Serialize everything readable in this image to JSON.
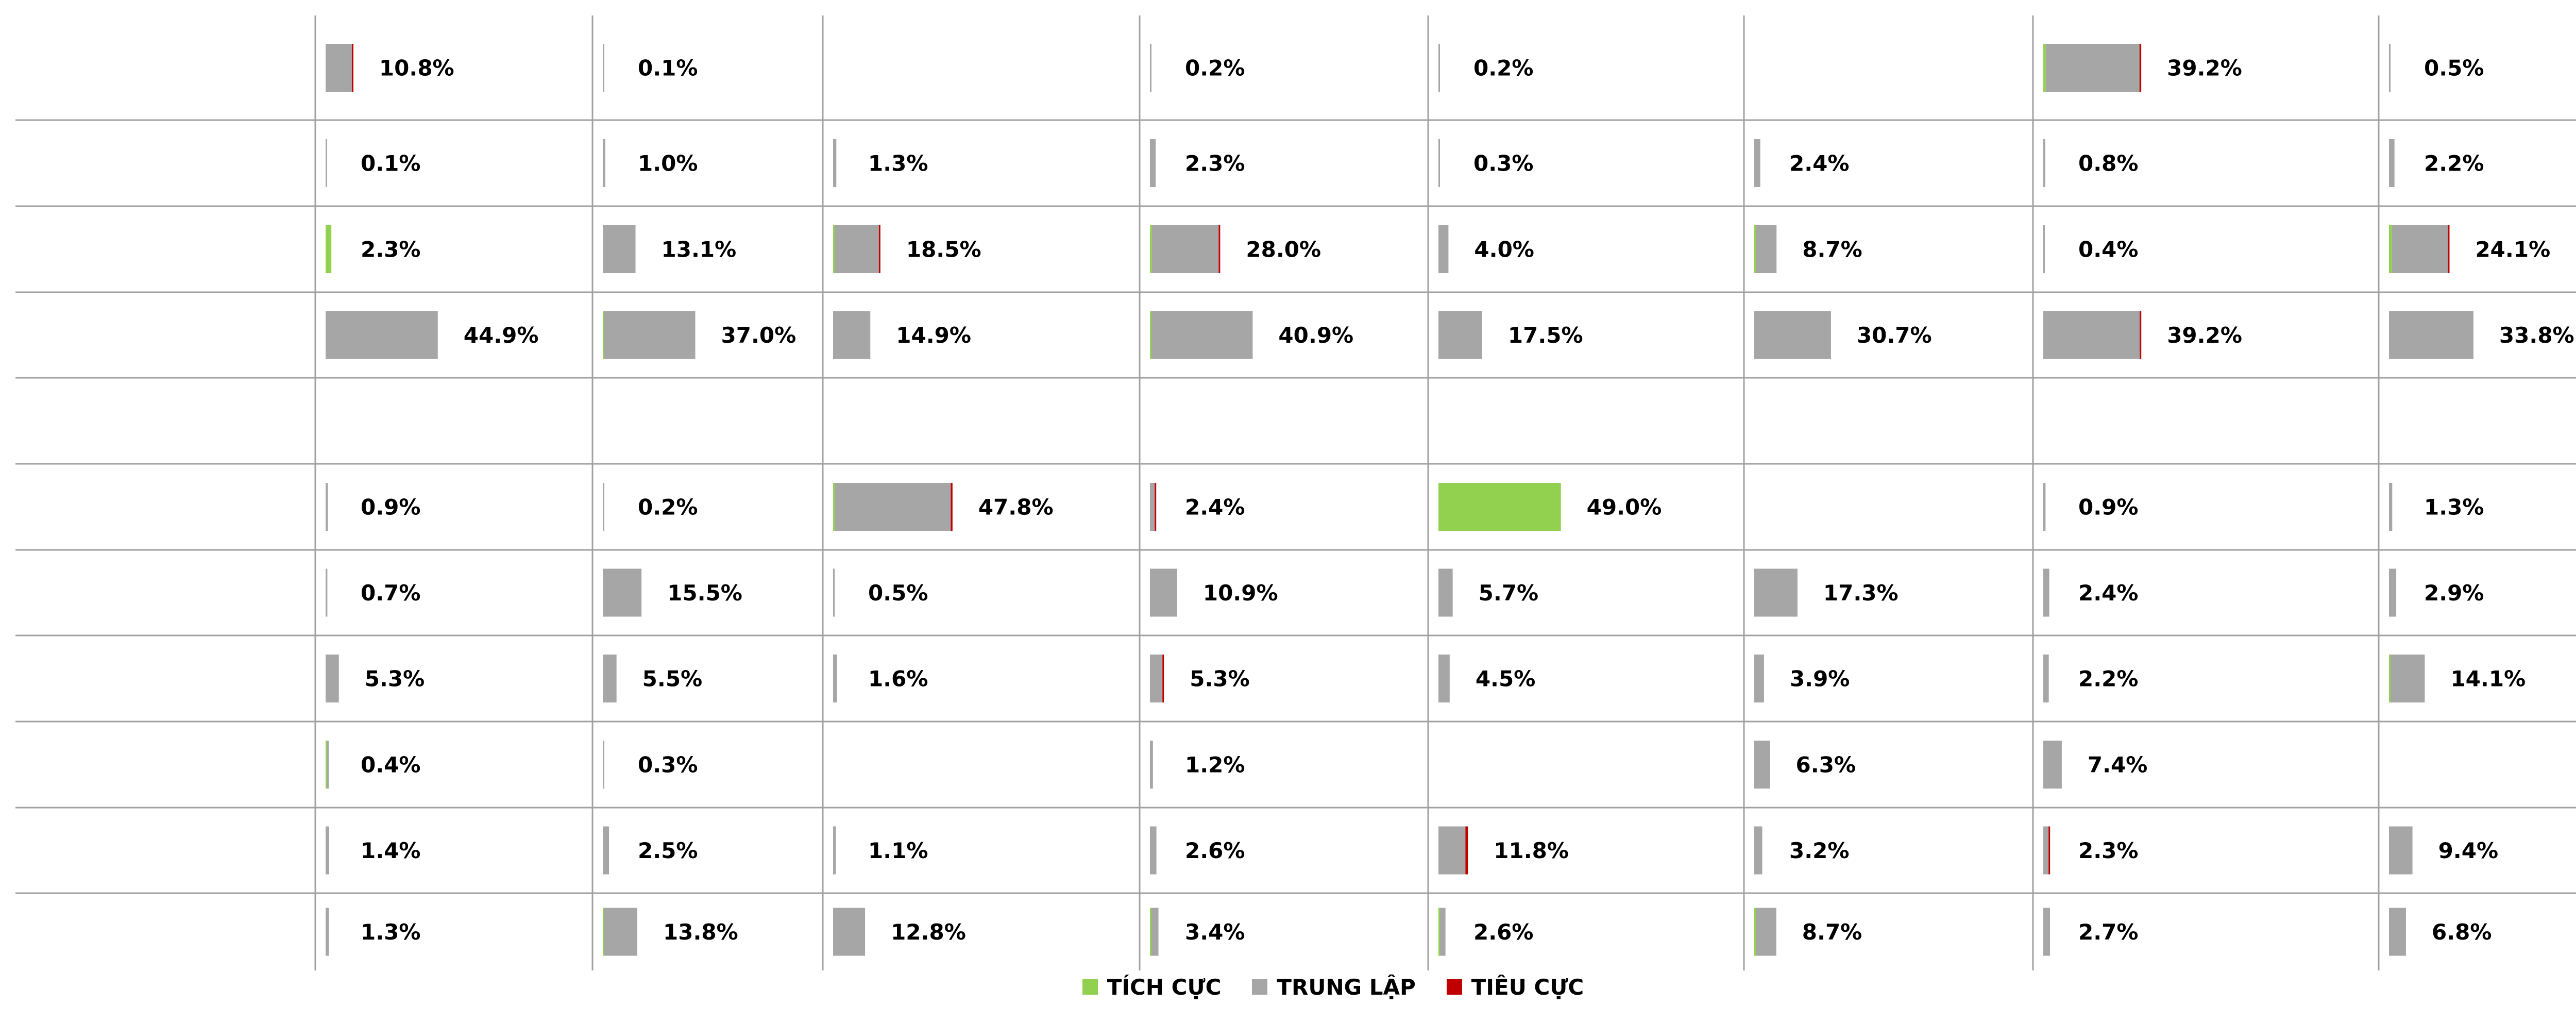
{
  "chart_data": {
    "type": "bar",
    "stacked": true,
    "orientation": "horizontal",
    "layout": "grid of small-multiple bar panels: 11 rows x 8 columns",
    "grid": true,
    "legend_placement": "bottom",
    "series": [
      {
        "name": "TÍCH CỰC",
        "color": "#92d050"
      },
      {
        "name": "TRUNG LẬP",
        "color": "#a6a6a6"
      },
      {
        "name": "TIÊU CỰC",
        "color": "#c00000"
      }
    ],
    "cells": [
      [
        {
          "total": "10.8%",
          "pos": 0.0,
          "neu": 10.5,
          "neg": 0.3
        },
        {
          "total": "0.1%",
          "pos": 0.0,
          "neu": 0.1,
          "neg": 0.0
        },
        null,
        {
          "total": "0.2%",
          "pos": 0.0,
          "neu": 0.2,
          "neg": 0.0
        },
        {
          "total": "0.2%",
          "pos": 0.0,
          "neu": 0.2,
          "neg": 0.0
        },
        null,
        {
          "total": "39.2%",
          "pos": 1.0,
          "neu": 37.5,
          "neg": 0.7
        },
        {
          "total": "0.5%",
          "pos": 0.0,
          "neu": 0.5,
          "neg": 0.0
        }
      ],
      [
        {
          "total": "0.1%",
          "pos": 0.0,
          "neu": 0.1,
          "neg": 0.0
        },
        {
          "total": "1.0%",
          "pos": 0.0,
          "neu": 1.0,
          "neg": 0.0
        },
        {
          "total": "1.3%",
          "pos": 0.0,
          "neu": 1.3,
          "neg": 0.0
        },
        {
          "total": "2.3%",
          "pos": 0.0,
          "neu": 2.3,
          "neg": 0.0
        },
        {
          "total": "0.3%",
          "pos": 0.0,
          "neu": 0.3,
          "neg": 0.0
        },
        {
          "total": "2.4%",
          "pos": 0.0,
          "neu": 2.4,
          "neg": 0.0
        },
        {
          "total": "0.8%",
          "pos": 0.0,
          "neu": 0.8,
          "neg": 0.0
        },
        {
          "total": "2.2%",
          "pos": 0.0,
          "neu": 2.2,
          "neg": 0.0
        }
      ],
      [
        {
          "total": "2.3%",
          "pos": 2.3,
          "neu": 0.0,
          "neg": 0.0
        },
        {
          "total": "13.1%",
          "pos": 0.0,
          "neu": 13.1,
          "neg": 0.0
        },
        {
          "total": "18.5%",
          "pos": 0.3,
          "neu": 17.7,
          "neg": 0.5
        },
        {
          "total": "28.0%",
          "pos": 0.8,
          "neu": 26.7,
          "neg": 0.5
        },
        {
          "total": "4.0%",
          "pos": 0.0,
          "neu": 4.0,
          "neg": 0.0
        },
        {
          "total": "8.7%",
          "pos": 0.4,
          "neu": 8.3,
          "neg": 0.0
        },
        {
          "total": "0.4%",
          "pos": 0.0,
          "neu": 0.4,
          "neg": 0.0
        },
        {
          "total": "24.1%",
          "pos": 1.2,
          "neu": 22.4,
          "neg": 0.5
        }
      ],
      [
        {
          "total": "44.9%",
          "pos": 0.0,
          "neu": 44.9,
          "neg": 0.0
        },
        {
          "total": "37.0%",
          "pos": 0.6,
          "neu": 36.4,
          "neg": 0.0
        },
        {
          "total": "14.9%",
          "pos": 0.0,
          "neu": 14.9,
          "neg": 0.0
        },
        {
          "total": "40.9%",
          "pos": 0.4,
          "neu": 40.5,
          "neg": 0.0
        },
        {
          "total": "17.5%",
          "pos": 0.0,
          "neu": 17.5,
          "neg": 0.0
        },
        {
          "total": "30.7%",
          "pos": 0.0,
          "neu": 30.7,
          "neg": 0.0
        },
        {
          "total": "39.2%",
          "pos": 0.0,
          "neu": 38.6,
          "neg": 0.6
        },
        {
          "total": "33.8%",
          "pos": 0.0,
          "neu": 33.8,
          "neg": 0.0
        }
      ],
      [
        null,
        null,
        null,
        null,
        null,
        null,
        null,
        null
      ],
      [
        {
          "total": "0.9%",
          "pos": 0.0,
          "neu": 0.9,
          "neg": 0.0
        },
        {
          "total": "0.2%",
          "pos": 0.0,
          "neu": 0.2,
          "neg": 0.0
        },
        {
          "total": "47.8%",
          "pos": 0.8,
          "neu": 46.3,
          "neg": 0.7
        },
        {
          "total": "2.4%",
          "pos": 0.0,
          "neu": 1.9,
          "neg": 0.5
        },
        {
          "total": "49.0%",
          "pos": 49.0,
          "neu": 0.0,
          "neg": 0.0
        },
        null,
        {
          "total": "0.9%",
          "pos": 0.0,
          "neu": 0.9,
          "neg": 0.0
        },
        {
          "total": "1.3%",
          "pos": 0.0,
          "neu": 1.3,
          "neg": 0.0
        }
      ],
      [
        {
          "total": "0.7%",
          "pos": 0.0,
          "neu": 0.7,
          "neg": 0.0
        },
        {
          "total": "15.5%",
          "pos": 0.0,
          "neu": 15.5,
          "neg": 0.0
        },
        {
          "total": "0.5%",
          "pos": 0.0,
          "neu": 0.5,
          "neg": 0.0
        },
        {
          "total": "10.9%",
          "pos": 0.0,
          "neu": 10.9,
          "neg": 0.0
        },
        {
          "total": "5.7%",
          "pos": 0.0,
          "neu": 5.7,
          "neg": 0.0
        },
        {
          "total": "17.3%",
          "pos": 0.0,
          "neu": 17.3,
          "neg": 0.0
        },
        {
          "total": "2.4%",
          "pos": 0.0,
          "neu": 2.4,
          "neg": 0.0
        },
        {
          "total": "2.9%",
          "pos": 0.0,
          "neu": 2.9,
          "neg": 0.0
        }
      ],
      [
        {
          "total": "5.3%",
          "pos": 0.0,
          "neu": 5.3,
          "neg": 0.0
        },
        {
          "total": "5.5%",
          "pos": 0.0,
          "neu": 5.5,
          "neg": 0.0
        },
        {
          "total": "1.6%",
          "pos": 0.0,
          "neu": 1.6,
          "neg": 0.0
        },
        {
          "total": "5.3%",
          "pos": 0.0,
          "neu": 5.0,
          "neg": 0.3
        },
        {
          "total": "4.5%",
          "pos": 0.0,
          "neu": 4.5,
          "neg": 0.0
        },
        {
          "total": "3.9%",
          "pos": 0.0,
          "neu": 3.9,
          "neg": 0.0
        },
        {
          "total": "2.2%",
          "pos": 0.0,
          "neu": 2.2,
          "neg": 0.0
        },
        {
          "total": "14.1%",
          "pos": 0.4,
          "neu": 13.7,
          "neg": 0.0
        }
      ],
      [
        {
          "total": "0.4%",
          "pos": 0.3,
          "neu": 0.1,
          "neg": 0.0
        },
        {
          "total": "0.3%",
          "pos": 0.0,
          "neu": 0.3,
          "neg": 0.0
        },
        null,
        {
          "total": "1.2%",
          "pos": 0.0,
          "neu": 1.2,
          "neg": 0.0
        },
        null,
        {
          "total": "6.3%",
          "pos": 0.0,
          "neu": 6.3,
          "neg": 0.0
        },
        {
          "total": "7.4%",
          "pos": 0.0,
          "neu": 7.4,
          "neg": 0.0
        },
        null
      ],
      [
        {
          "total": "1.4%",
          "pos": 0.0,
          "neu": 1.4,
          "neg": 0.0
        },
        {
          "total": "2.5%",
          "pos": 0.0,
          "neu": 2.5,
          "neg": 0.0
        },
        {
          "total": "1.1%",
          "pos": 0.0,
          "neu": 1.1,
          "neg": 0.0
        },
        {
          "total": "2.6%",
          "pos": 0.0,
          "neu": 2.6,
          "neg": 0.0
        },
        {
          "total": "11.8%",
          "pos": 0.0,
          "neu": 10.8,
          "neg": 1.0
        },
        {
          "total": "3.2%",
          "pos": 0.0,
          "neu": 3.2,
          "neg": 0.0
        },
        {
          "total": "2.3%",
          "pos": 0.0,
          "neu": 2.1,
          "neg": 0.2
        },
        {
          "total": "9.4%",
          "pos": 0.0,
          "neu": 9.4,
          "neg": 0.0
        }
      ],
      [
        {
          "total": "1.3%",
          "pos": 0.0,
          "neu": 1.3,
          "neg": 0.0
        },
        {
          "total": "13.8%",
          "pos": 0.6,
          "neu": 13.2,
          "neg": 0.0
        },
        {
          "total": "12.8%",
          "pos": 0.0,
          "neu": 12.8,
          "neg": 0.0
        },
        {
          "total": "3.4%",
          "pos": 0.6,
          "neu": 2.8,
          "neg": 0.0
        },
        {
          "total": "2.6%",
          "pos": 0.4,
          "neu": 2.2,
          "neg": 0.0
        },
        {
          "total": "8.7%",
          "pos": 0.5,
          "neu": 8.2,
          "neg": 0.0
        },
        {
          "total": "2.7%",
          "pos": 0.0,
          "neu": 2.7,
          "neg": 0.0
        },
        {
          "total": "6.8%",
          "pos": 0.0,
          "neu": 6.8,
          "neg": 0.0
        }
      ]
    ]
  }
}
